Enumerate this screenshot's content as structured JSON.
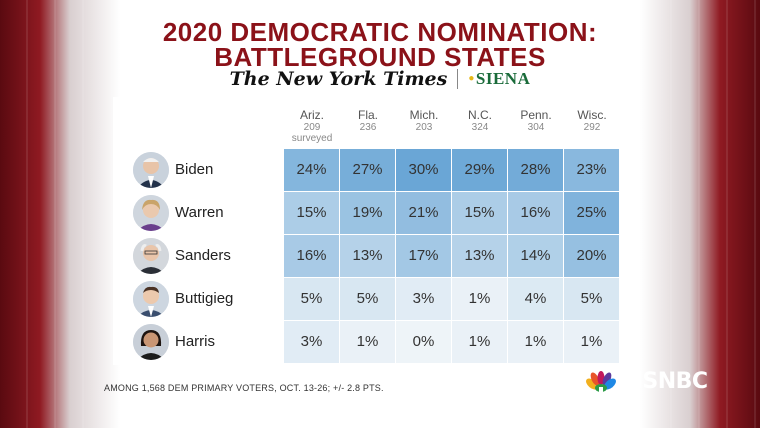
{
  "title": {
    "line1": "2020 DEMOCRATIC NOMINATION:",
    "line2": "BATTLEGROUND STATES"
  },
  "logos": {
    "nyt": "The New York Times",
    "siena": "SIENA"
  },
  "columns": [
    {
      "state": "Ariz.",
      "n": "209",
      "note": "surveyed"
    },
    {
      "state": "Fla.",
      "n": "236",
      "note": ""
    },
    {
      "state": "Mich.",
      "n": "203",
      "note": ""
    },
    {
      "state": "N.C.",
      "n": "324",
      "note": ""
    },
    {
      "state": "Penn.",
      "n": "304",
      "note": ""
    },
    {
      "state": "Wisc.",
      "n": "292",
      "note": ""
    }
  ],
  "rows": [
    {
      "name": "Biden",
      "values": [
        "24%",
        "27%",
        "30%",
        "29%",
        "28%",
        "23%"
      ],
      "levels": [
        24,
        27,
        30,
        29,
        28,
        23
      ]
    },
    {
      "name": "Warren",
      "values": [
        "15%",
        "19%",
        "21%",
        "15%",
        "16%",
        "25%"
      ],
      "levels": [
        15,
        19,
        21,
        15,
        16,
        25
      ]
    },
    {
      "name": "Sanders",
      "values": [
        "16%",
        "13%",
        "17%",
        "13%",
        "14%",
        "20%"
      ],
      "levels": [
        16,
        13,
        17,
        13,
        14,
        20
      ]
    },
    {
      "name": "Buttigieg",
      "values": [
        "5%",
        "5%",
        "3%",
        "1%",
        "4%",
        "5%"
      ],
      "levels": [
        5,
        5,
        3,
        1,
        4,
        5
      ]
    },
    {
      "name": "Harris",
      "values": [
        "3%",
        "1%",
        "0%",
        "1%",
        "1%",
        "1%"
      ],
      "levels": [
        3,
        1,
        0,
        1,
        1,
        1
      ]
    }
  ],
  "footnote": "AMONG 1,568 DEM PRIMARY VOTERS, OCT. 13-26; +/- 2.8 PTS.",
  "network": {
    "logo_text": "MSNBC"
  },
  "colors": {
    "title": "#8b1219",
    "cell_low": "#eef4f8",
    "cell_high": "#6aa6d6"
  }
}
